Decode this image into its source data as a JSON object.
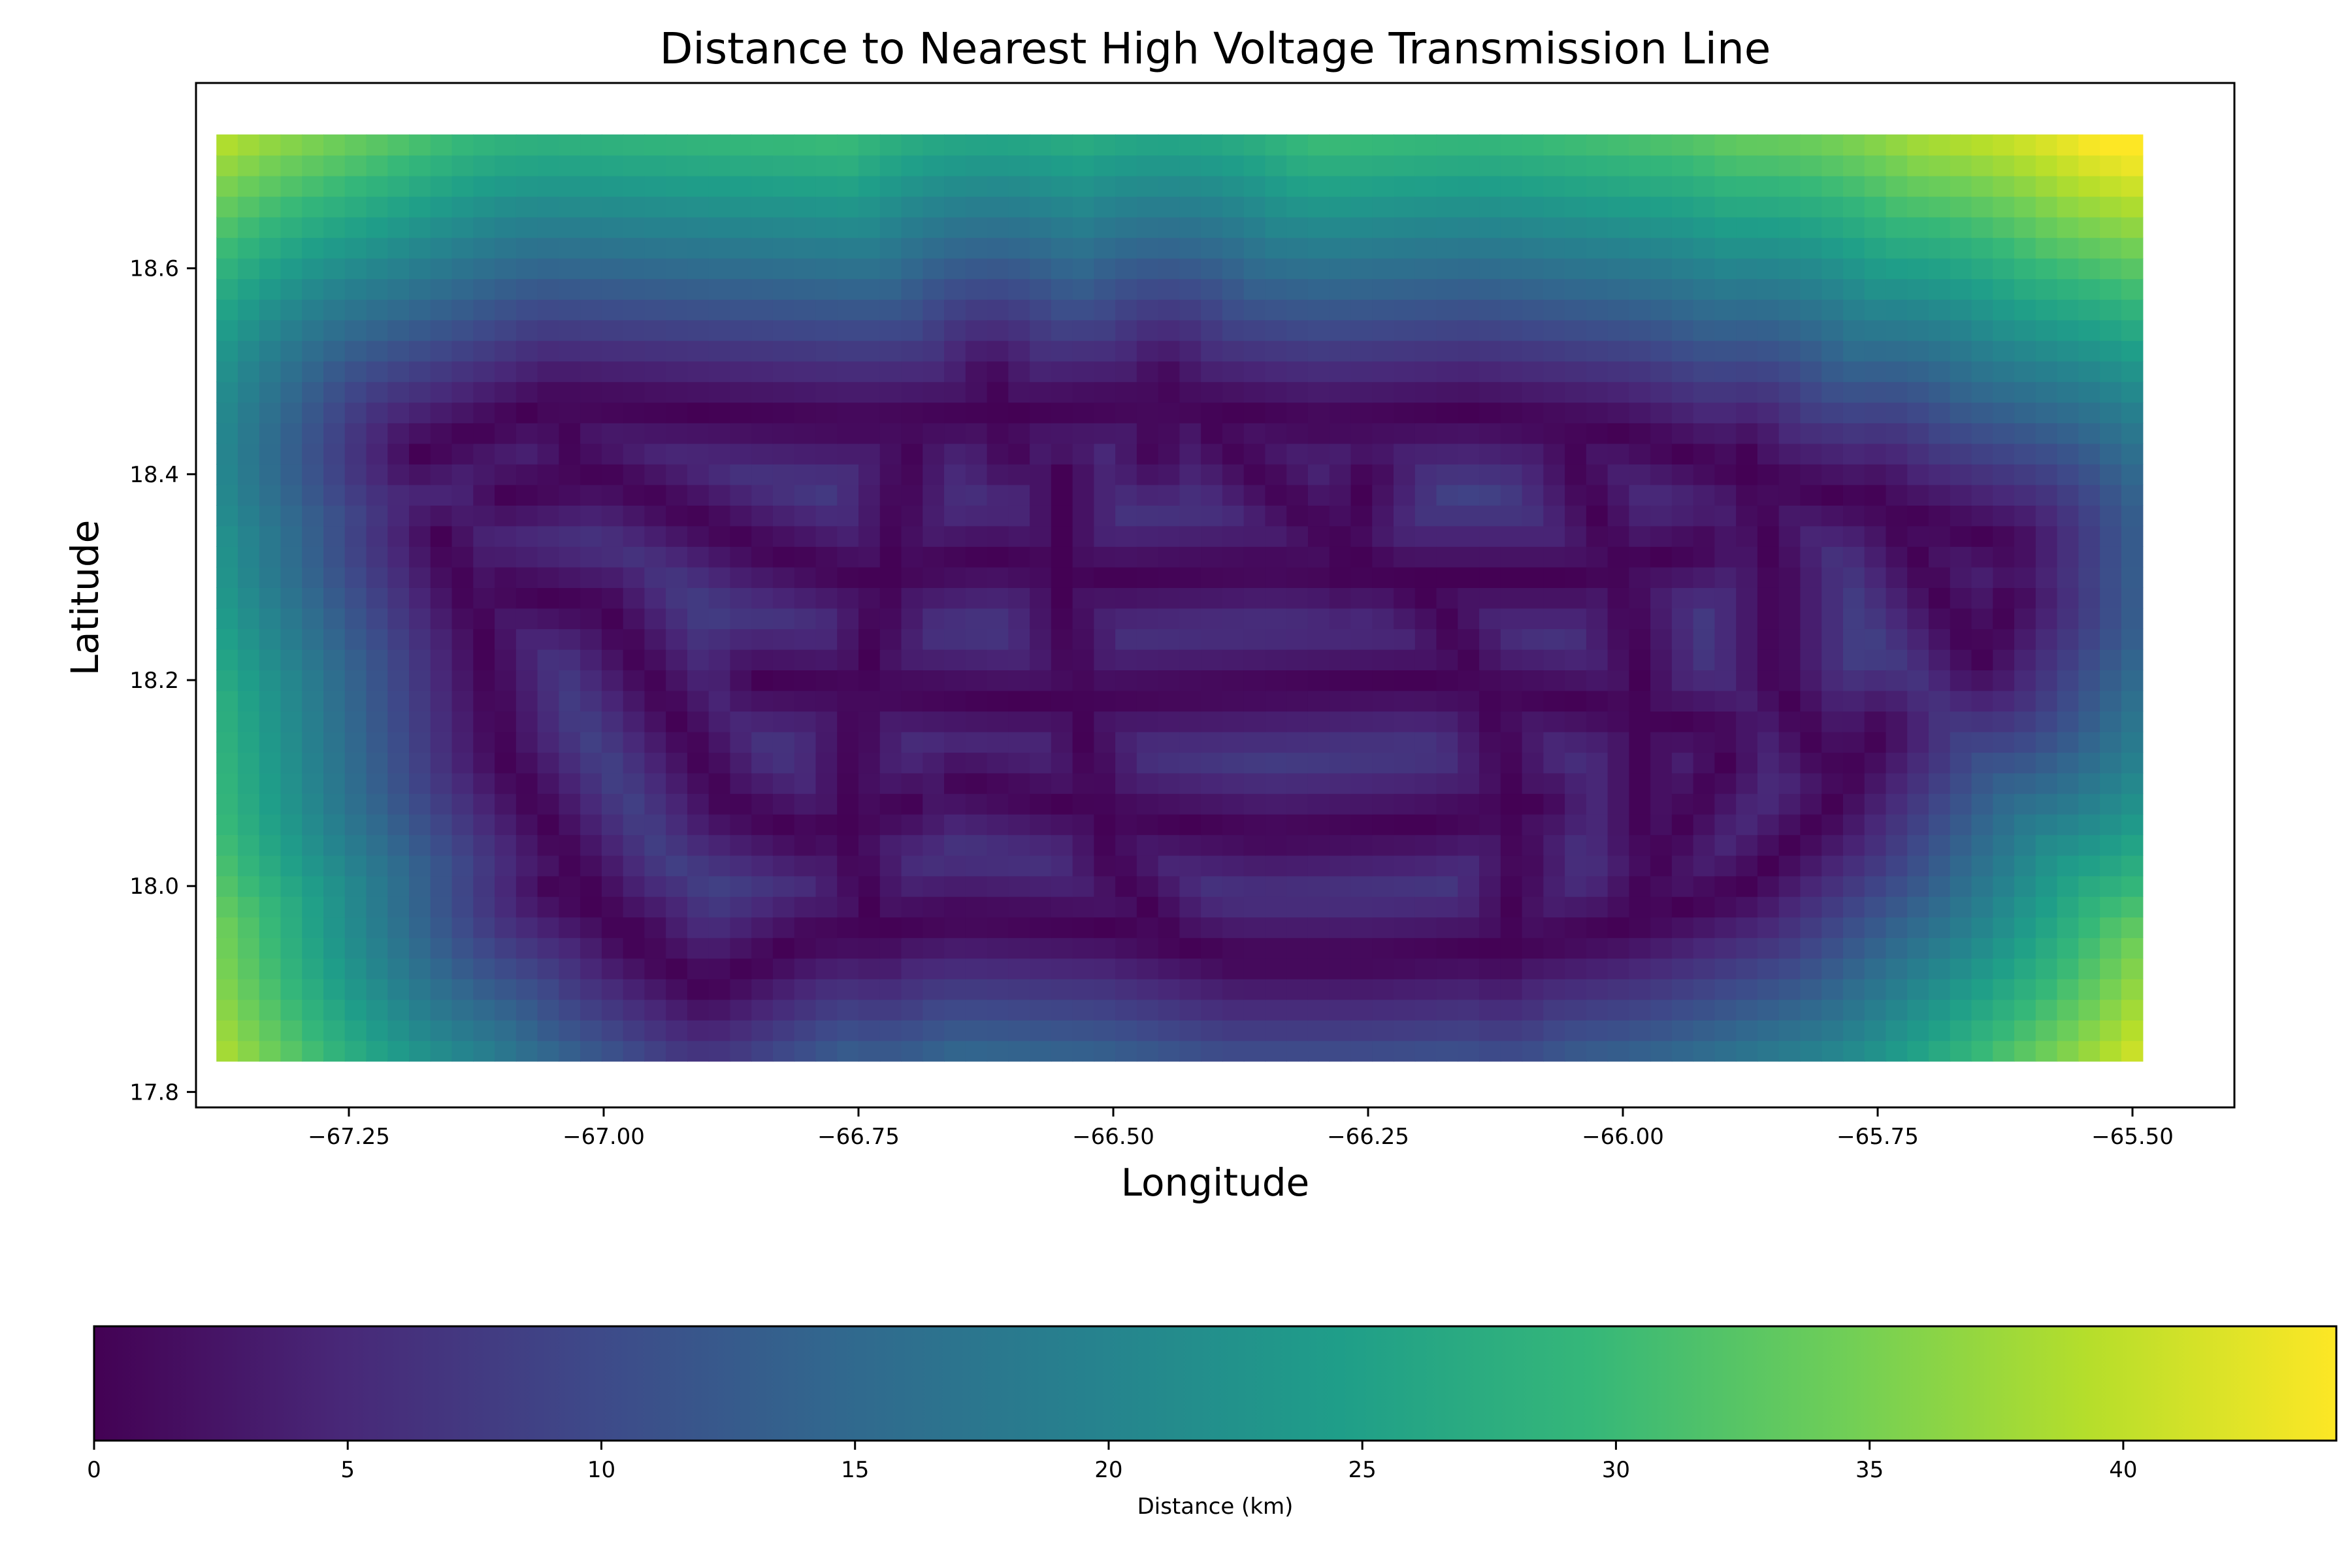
{
  "chart_data": {
    "type": "heatmap",
    "title": "Distance to Nearest High Voltage Transmission Line",
    "xlabel": "Longitude",
    "ylabel": "Latitude",
    "xlim": [
      -67.4,
      -65.4
    ],
    "ylim": [
      17.785,
      18.78
    ],
    "data_extent": {
      "lon": [
        -67.38,
        -65.49
      ],
      "lat": [
        17.83,
        18.73
      ]
    },
    "x_ticks": [
      {
        "value": -67.25,
        "label": "−67.25"
      },
      {
        "value": -67.0,
        "label": "−67.00"
      },
      {
        "value": -66.75,
        "label": "−66.75"
      },
      {
        "value": -66.5,
        "label": "−66.50"
      },
      {
        "value": -66.25,
        "label": "−66.25"
      },
      {
        "value": -66.0,
        "label": "−66.00"
      },
      {
        "value": -65.75,
        "label": "−65.75"
      },
      {
        "value": -65.5,
        "label": "−65.50"
      }
    ],
    "y_ticks": [
      {
        "value": 17.8,
        "label": "17.8"
      },
      {
        "value": 18.0,
        "label": "18.0"
      },
      {
        "value": 18.2,
        "label": "18.2"
      },
      {
        "value": 18.4,
        "label": "18.4"
      },
      {
        "value": 18.6,
        "label": "18.6"
      }
    ],
    "colorbar": {
      "label": "Distance (km)",
      "colormap": "viridis",
      "range": [
        0,
        44.2
      ],
      "ticks": [
        {
          "value": 0,
          "label": "0"
        },
        {
          "value": 5,
          "label": "5"
        },
        {
          "value": 10,
          "label": "10"
        },
        {
          "value": 15,
          "label": "15"
        },
        {
          "value": 20,
          "label": "20"
        },
        {
          "value": 25,
          "label": "25"
        },
        {
          "value": 30,
          "label": "30"
        },
        {
          "value": 35,
          "label": "35"
        },
        {
          "value": 40,
          "label": "40"
        }
      ],
      "orientation": "horizontal",
      "position": "bottom"
    },
    "colormap_stops": [
      "#440154",
      "#482878",
      "#3e4989",
      "#31688e",
      "#26828e",
      "#1f9e89",
      "#35b779",
      "#6ece58",
      "#b5de2b",
      "#fde725"
    ],
    "corner_values_km": {
      "top-left": 40,
      "top-right": 44,
      "bottom-left": 41,
      "bottom-right": 43
    },
    "transmission_lines": [
      [
        [
          -67.18,
          18.42
        ],
        [
          -67.05,
          18.47
        ],
        [
          -66.9,
          18.46
        ],
        [
          -66.75,
          18.45
        ],
        [
          -66.6,
          18.46
        ],
        [
          -66.45,
          18.47
        ],
        [
          -66.3,
          18.45
        ],
        [
          -66.15,
          18.46
        ],
        [
          -66.0,
          18.44
        ],
        [
          -65.88,
          18.4
        ],
        [
          -65.75,
          18.37
        ],
        [
          -65.62,
          18.33
        ]
      ],
      [
        [
          -67.16,
          18.34
        ],
        [
          -67.12,
          18.25
        ],
        [
          -67.1,
          18.13
        ],
        [
          -67.05,
          18.05
        ],
        [
          -66.98,
          17.95
        ],
        [
          -66.9,
          17.9
        ],
        [
          -66.8,
          17.95
        ],
        [
          -66.65,
          17.97
        ],
        [
          -66.5,
          17.96
        ],
        [
          -66.38,
          17.93
        ],
        [
          -66.25,
          17.93
        ],
        [
          -66.12,
          17.94
        ],
        [
          -66.0,
          17.96
        ],
        [
          -65.88,
          18.0
        ],
        [
          -65.8,
          18.07
        ],
        [
          -65.75,
          18.15
        ]
      ],
      [
        [
          -67.1,
          18.38
        ],
        [
          -67.0,
          18.4
        ],
        [
          -66.85,
          18.33
        ],
        [
          -66.75,
          18.3
        ],
        [
          -66.62,
          18.32
        ],
        [
          -66.5,
          18.3
        ],
        [
          -66.35,
          18.31
        ],
        [
          -66.2,
          18.3
        ],
        [
          -66.05,
          18.3
        ],
        [
          -65.92,
          18.33
        ]
      ],
      [
        [
          -67.1,
          18.29
        ],
        [
          -67.0,
          18.27
        ],
        [
          -66.92,
          18.15
        ],
        [
          -66.88,
          18.08
        ],
        [
          -66.8,
          18.05
        ],
        [
          -66.7,
          18.08
        ]
      ],
      [
        [
          -66.7,
          18.43
        ],
        [
          -66.72,
          18.3
        ],
        [
          -66.75,
          18.18
        ],
        [
          -66.76,
          18.05
        ],
        [
          -66.73,
          17.95
        ]
      ],
      [
        [
          -66.55,
          18.4
        ],
        [
          -66.55,
          18.28
        ],
        [
          -66.53,
          18.15
        ],
        [
          -66.5,
          18.02
        ],
        [
          -66.45,
          17.96
        ]
      ],
      [
        [
          -66.4,
          18.44
        ],
        [
          -66.3,
          18.35
        ],
        [
          -66.18,
          18.27
        ],
        [
          -66.12,
          18.15
        ],
        [
          -66.1,
          18.02
        ],
        [
          -66.12,
          17.93
        ]
      ],
      [
        [
          -66.05,
          18.42
        ],
        [
          -66.0,
          18.3
        ],
        [
          -65.98,
          18.18
        ],
        [
          -65.98,
          18.05
        ]
      ],
      [
        [
          -65.88,
          18.42
        ],
        [
          -65.85,
          18.3
        ],
        [
          -65.85,
          18.2
        ],
        [
          -65.8,
          18.12
        ]
      ],
      [
        [
          -65.75,
          18.38
        ],
        [
          -65.7,
          18.3
        ],
        [
          -65.65,
          18.22
        ],
        [
          -65.62,
          18.28
        ]
      ],
      [
        [
          -66.85,
          18.2
        ],
        [
          -66.6,
          18.18
        ],
        [
          -66.4,
          18.19
        ],
        [
          -66.2,
          18.2
        ],
        [
          -66.05,
          18.18
        ],
        [
          -65.9,
          18.15
        ]
      ],
      [
        [
          -66.65,
          18.1
        ],
        [
          -66.5,
          18.07
        ],
        [
          -66.35,
          18.05
        ],
        [
          -66.2,
          18.06
        ],
        [
          -66.08,
          18.08
        ]
      ],
      [
        [
          -67.05,
          18.47
        ],
        [
          -67.02,
          18.4
        ]
      ],
      [
        [
          -66.62,
          18.49
        ],
        [
          -66.6,
          18.42
        ]
      ],
      [
        [
          -66.45,
          18.49
        ],
        [
          -66.46,
          18.42
        ]
      ],
      [
        [
          -66.25,
          18.4
        ],
        [
          -66.28,
          18.3
        ]
      ],
      [
        [
          -66.96,
          17.95
        ],
        [
          -67.05,
          18.0
        ]
      ],
      [
        [
          -66.0,
          17.96
        ],
        [
          -65.95,
          18.05
        ],
        [
          -65.9,
          18.12
        ]
      ]
    ]
  }
}
